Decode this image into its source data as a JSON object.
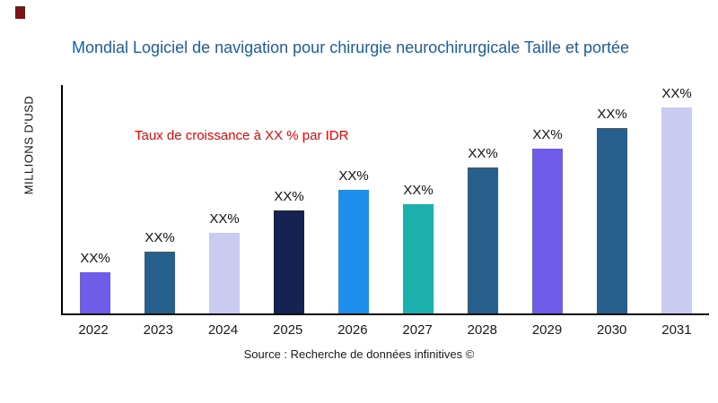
{
  "page": {
    "title_color": "#1A5EA8",
    "annotation_color": "#FF0000",
    "corner_mark_color": "#7D1416"
  },
  "chart_data": {
    "type": "bar",
    "title": "Mondial Logiciel de navigation pour chirurgie neurochirurgicale Taille et portée",
    "ylabel": "MILLIONS D'USD",
    "xlabel": "",
    "annotation": "Taux de croissance à XX % par IDR",
    "source": "Source : Recherche de données infinitives ©",
    "categories": [
      "2022",
      "2023",
      "2024",
      "2025",
      "2026",
      "2027",
      "2028",
      "2029",
      "2030",
      "2031"
    ],
    "values": [
      20,
      30,
      39,
      50,
      60,
      53,
      71,
      80,
      90,
      100
    ],
    "value_labels": [
      "XX%",
      "XX%",
      "XX%",
      "XX%",
      "XX%",
      "XX%",
      "XX%",
      "XX%",
      "XX%",
      "XX%"
    ],
    "bar_colors": [
      "#6F5CE8",
      "#275F8D",
      "#C9CCF0",
      "#152353",
      "#1E8FEA",
      "#1CB0AD",
      "#275F8D",
      "#6F5CE8",
      "#275F8D",
      "#C9CCF0"
    ],
    "ylim": [
      0,
      111
    ],
    "grid": false,
    "legend": false
  }
}
